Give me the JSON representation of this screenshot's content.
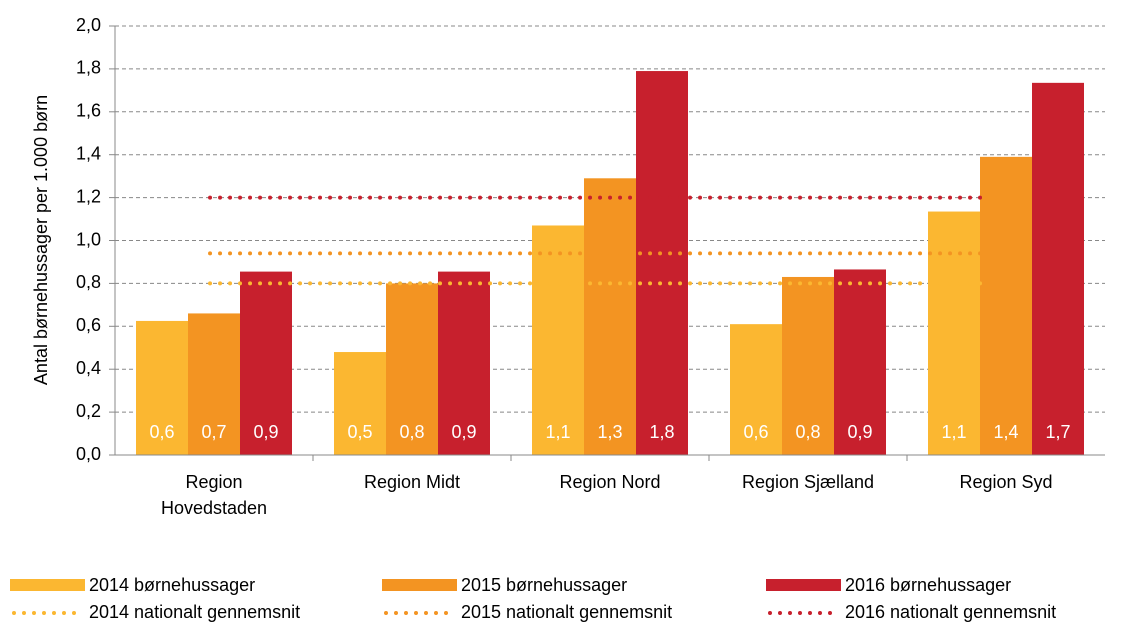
{
  "chart_data": {
    "type": "bar",
    "y_label": "Antal børnehussager per 1.000 børn",
    "categories": [
      "Region Hovedstaden",
      "Region Midt",
      "Region Nord",
      "Region Sjælland",
      "Region Syd"
    ],
    "series": [
      {
        "name": "2014 børnehussager",
        "color": "#fbb731",
        "values": [
          0.625,
          0.48,
          1.07,
          0.61,
          1.135
        ],
        "value_labels": [
          "0,6",
          "0,5",
          "1,1",
          "0,6",
          "1,1"
        ]
      },
      {
        "name": "2015 børnehussager",
        "color": "#f39422",
        "values": [
          0.66,
          0.8,
          1.29,
          0.83,
          1.39
        ],
        "value_labels": [
          "0,7",
          "0,8",
          "1,3",
          "0,8",
          "1,4"
        ]
      },
      {
        "name": "2016 børnehussager",
        "color": "#c7202d",
        "values": [
          0.855,
          0.855,
          1.79,
          0.865,
          1.735
        ],
        "value_labels": [
          "0,9",
          "0,9",
          "1,8",
          "0,9",
          "1,7"
        ]
      }
    ],
    "reference_lines": [
      {
        "name": "2014 nationalt gennemsnit",
        "color": "#fbb731",
        "value": 0.8
      },
      {
        "name": "2015 nationalt gennemsnit",
        "color": "#f39422",
        "value": 0.94
      },
      {
        "name": "2016 nationalt gennemsnit",
        "color": "#c7202d",
        "value": 1.2
      }
    ],
    "ylim": [
      0,
      2
    ],
    "yticks": [
      {
        "value": 0,
        "label": "0,0"
      },
      {
        "value": 0.2,
        "label": "0,2"
      },
      {
        "value": 0.4,
        "label": "0,4"
      },
      {
        "value": 0.6,
        "label": "0,6"
      },
      {
        "value": 0.8,
        "label": "0,8"
      },
      {
        "value": 1,
        "label": "1,0"
      },
      {
        "value": 1.2,
        "label": "1,2"
      },
      {
        "value": 1.4,
        "label": "1,4"
      },
      {
        "value": 1.6,
        "label": "1,6"
      },
      {
        "value": 1.8,
        "label": "1,8"
      },
      {
        "value": 2,
        "label": "2,0"
      }
    ],
    "grid": true,
    "legend": "bottom"
  }
}
